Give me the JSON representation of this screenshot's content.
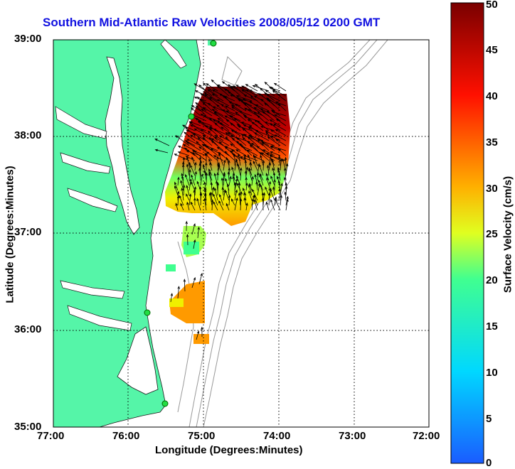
{
  "chart_data": {
    "type": "heatmap",
    "title": "Southern Mid-Atlantic Raw Velocities 2008/05/12 0200 GMT",
    "xlabel": "Longitude (Degrees:Minutes)",
    "ylabel": "Latitude (Degrees:Minutes)",
    "x_ticks": [
      "77:00",
      "76:00",
      "75:00",
      "74:00",
      "73:00",
      "72:00"
    ],
    "y_ticks": [
      "39:00",
      "38:00",
      "37:00",
      "36:00",
      "35:00"
    ],
    "xlim": [
      -77,
      -72
    ],
    "ylim": [
      35,
      39
    ],
    "grid": true,
    "colorbar": {
      "label": "Surface Velocity (cm/s)",
      "range": [
        0,
        50
      ],
      "ticks": [
        "0",
        "5",
        "10",
        "15",
        "20",
        "25",
        "30",
        "35",
        "40",
        "45",
        "50"
      ]
    },
    "colors": {
      "land": "#55f5a8",
      "title": "#1010e0",
      "contour": "#999999"
    }
  }
}
